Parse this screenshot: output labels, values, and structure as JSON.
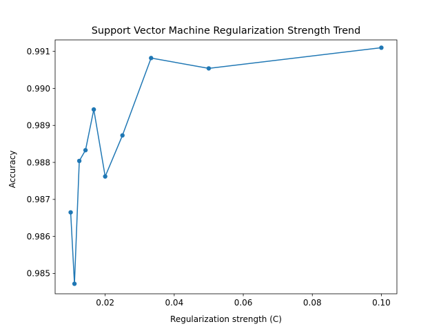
{
  "chart_data": {
    "type": "line",
    "title": "Support Vector Machine Regularization Strength Trend",
    "xlabel": "Regularization strength (C)",
    "ylabel": "Accuracy",
    "xlim": [
      0.0055,
      0.1045
    ],
    "ylim": [
      0.98445,
      0.99131
    ],
    "xticks": [
      0.02,
      0.04,
      0.06,
      0.08,
      0.1
    ],
    "xtick_labels": [
      "0.02",
      "0.04",
      "0.06",
      "0.08",
      "0.10"
    ],
    "yticks": [
      0.985,
      0.986,
      0.987,
      0.988,
      0.989,
      0.99,
      0.991
    ],
    "ytick_labels": [
      "0.985",
      "0.986",
      "0.987",
      "0.988",
      "0.989",
      "0.990",
      "0.991"
    ],
    "grid": false,
    "color": "#1f77b4",
    "series": [
      {
        "x": [
          0.01,
          0.0111,
          0.0125,
          0.0143,
          0.0167,
          0.02,
          0.025,
          0.0333,
          0.05,
          0.1
        ],
        "y": [
          0.98665,
          0.98472,
          0.98804,
          0.98833,
          0.98943,
          0.98762,
          0.98873,
          0.99082,
          0.99054,
          0.9911
        ]
      }
    ]
  }
}
